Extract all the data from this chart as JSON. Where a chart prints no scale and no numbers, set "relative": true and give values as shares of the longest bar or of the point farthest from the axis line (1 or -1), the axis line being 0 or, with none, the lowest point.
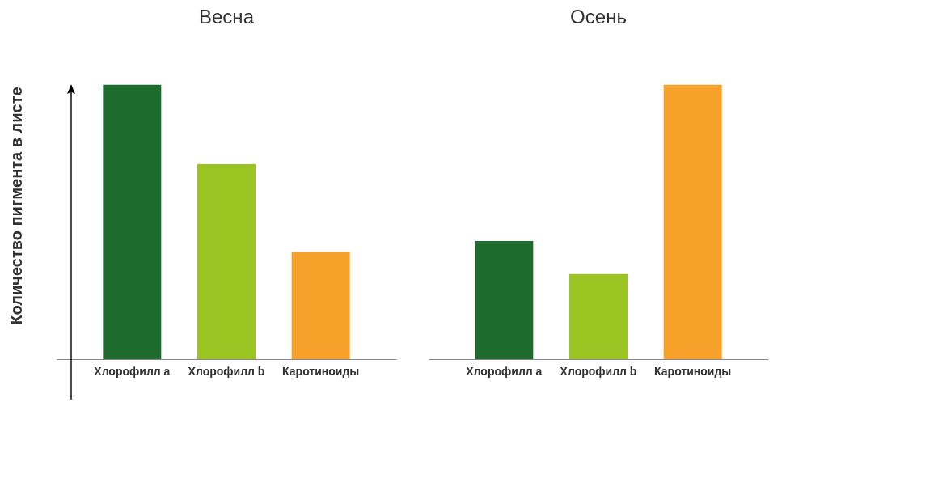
{
  "chart_data": [
    {
      "type": "bar",
      "title": "Весна",
      "ylabel": "Количество пигмента в листе",
      "categories": [
        "Хлорофилл a",
        "Хлорофилл b",
        "Каротиноиды"
      ],
      "values": [
        1,
        0.71,
        0.39
      ],
      "colors": [
        "#1e6b2e",
        "#9ac421",
        "#f6a22a"
      ],
      "relative": true
    },
    {
      "type": "bar",
      "title": "Осень",
      "categories": [
        "Хлорофилл a",
        "Хлорофилл b",
        "Каротиноиды"
      ],
      "values": [
        0.43,
        0.31,
        1
      ],
      "colors": [
        "#1e6b2e",
        "#9ac421",
        "#f6a22a"
      ],
      "relative": true
    }
  ]
}
